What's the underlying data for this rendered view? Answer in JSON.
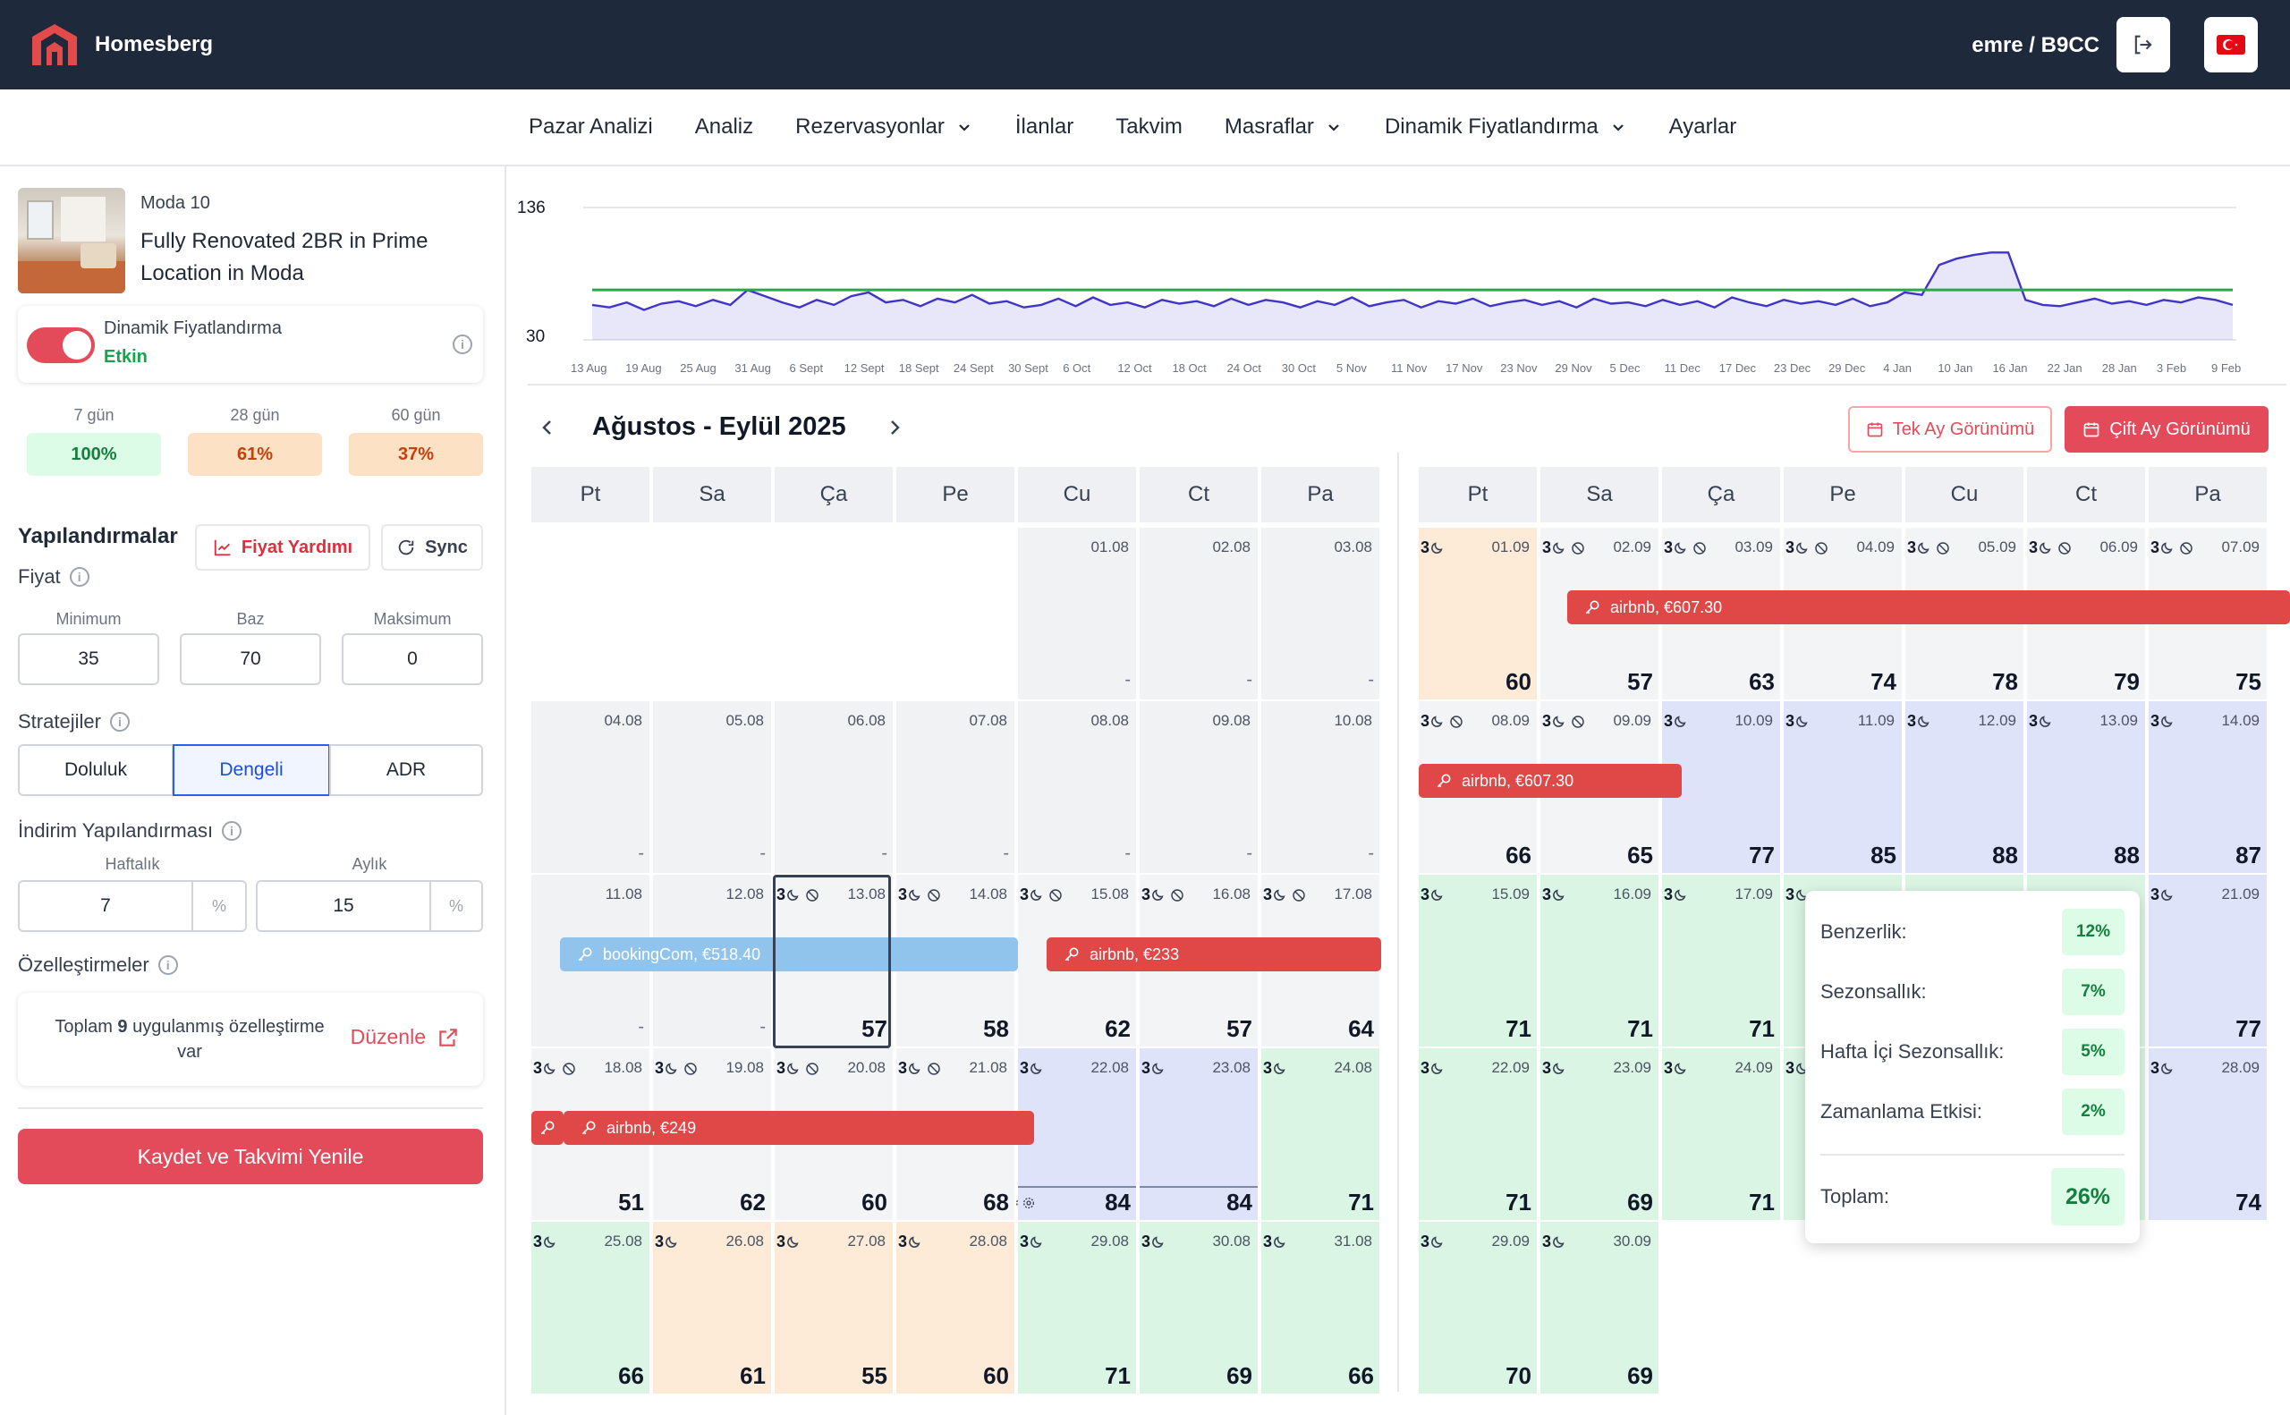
{
  "app": {
    "brand": "Homesberg",
    "user": "emre / B9CC"
  },
  "nav": [
    "Pazar Analizi",
    "Analiz",
    "Rezervasyonlar",
    "İlanlar",
    "Takvim",
    "Masraflar",
    "Dinamik Fiyatlandırma",
    "Ayarlar"
  ],
  "listing": {
    "group": "Moda 10",
    "title_line1": "Fully Renovated 2BR in Prime",
    "title_line2": "Location in Moda"
  },
  "dynamic": {
    "label": "Dinamik Fiyatlandırma",
    "status": "Etkin"
  },
  "occupancy": [
    {
      "label": "7 gün",
      "value": "100%"
    },
    {
      "label": "28 gün",
      "value": "61%"
    },
    {
      "label": "60 gün",
      "value": "37%"
    }
  ],
  "config": {
    "title": "Yapılandırmalar",
    "help_btn": "Fiyat Yardımı",
    "sync_btn": "Sync",
    "price_label": "Fiyat",
    "min_label": "Minimum",
    "base_label": "Baz",
    "max_label": "Maksimum",
    "min": "35",
    "base": "70",
    "max": "0",
    "strategies_label": "Stratejiler",
    "strategies": [
      "Doluluk",
      "Dengeli",
      "ADR"
    ],
    "discount_label": "İndirim Yapılandırması",
    "weekly_label": "Haftalık",
    "monthly_label": "Aylık",
    "weekly": "7",
    "monthly": "15",
    "pct": "%",
    "custom_label": "Özelleştirmeler",
    "custom_pre": "Toplam ",
    "custom_count": "9",
    "custom_post": " uygulanmış özelleştirme",
    "custom_post2": "var",
    "edit": "Düzenle",
    "save": "Kaydet ve Takvimi Yenile"
  },
  "chart_data": {
    "type": "line",
    "y_ticks": [
      "136",
      "30"
    ],
    "ylim": [
      30,
      136
    ],
    "x_labels": [
      "13 Aug",
      "19 Aug",
      "25 Aug",
      "31 Aug",
      "6 Sept",
      "12 Sept",
      "18 Sept",
      "24 Sept",
      "30 Sept",
      "6 Oct",
      "12 Oct",
      "18 Oct",
      "24 Oct",
      "30 Oct",
      "5 Nov",
      "11 Nov",
      "17 Nov",
      "23 Nov",
      "29 Nov",
      "5 Dec",
      "11 Dec",
      "17 Dec",
      "23 Dec",
      "29 Dec",
      "4 Jan",
      "10 Jan",
      "16 Jan",
      "22 Jan",
      "28 Jan",
      "3 Feb",
      "9 Feb"
    ],
    "price_series": [
      58,
      56,
      60,
      54,
      59,
      61,
      57,
      62,
      58,
      70,
      65,
      60,
      56,
      62,
      58,
      65,
      68,
      60,
      62,
      57,
      63,
      60,
      66,
      59,
      61,
      56,
      58,
      63,
      57,
      64,
      58,
      60,
      56,
      62,
      59,
      61,
      57,
      63,
      58,
      62,
      60,
      56,
      61,
      58,
      64,
      57,
      60,
      62,
      56,
      61,
      59,
      63,
      57,
      60,
      62,
      58,
      61,
      56,
      63,
      59,
      60,
      57,
      62,
      58,
      61,
      56,
      64,
      60,
      57,
      62,
      59,
      61,
      58,
      63,
      57,
      60,
      68,
      66,
      90,
      95,
      98,
      100,
      100,
      62,
      58,
      57,
      60,
      63,
      59,
      61,
      58,
      62,
      60,
      64,
      62,
      58
    ],
    "base_line": 70
  },
  "calendar": {
    "title": "Ağustos - Eylül 2025",
    "single_view": "Tek Ay Görünümü",
    "double_view": "Çift Ay Görünümü",
    "weekdays": [
      "Pt",
      "Sa",
      "Ça",
      "Pe",
      "Cu",
      "Ct",
      "Pa"
    ],
    "left": [
      [
        null,
        null,
        null,
        null,
        {
          "d": "01.08",
          "p": "-"
        },
        {
          "d": "02.08",
          "p": "-"
        },
        {
          "d": "03.08",
          "p": "-"
        }
      ],
      [
        {
          "d": "04.08",
          "p": "-"
        },
        {
          "d": "05.08",
          "p": "-"
        },
        {
          "d": "06.08",
          "p": "-"
        },
        {
          "d": "07.08",
          "p": "-"
        },
        {
          "d": "08.08",
          "p": "-"
        },
        {
          "d": "09.08",
          "p": "-"
        },
        {
          "d": "10.08",
          "p": "-"
        }
      ],
      [
        {
          "d": "11.08",
          "p": "-"
        },
        {
          "d": "12.08",
          "p": "-"
        },
        {
          "d": "13.08",
          "p": "57",
          "m": "3"
        },
        {
          "d": "14.08",
          "p": "58",
          "m": "3"
        },
        {
          "d": "15.08",
          "p": "62",
          "m": "3"
        },
        {
          "d": "16.08",
          "p": "57",
          "m": "3"
        },
        {
          "d": "17.08",
          "p": "64",
          "m": "3"
        }
      ],
      [
        {
          "d": "18.08",
          "p": "51",
          "m": "3"
        },
        {
          "d": "19.08",
          "p": "62",
          "m": "3"
        },
        {
          "d": "20.08",
          "p": "60",
          "m": "3"
        },
        {
          "d": "21.08",
          "p": "68",
          "m": "3"
        },
        {
          "d": "22.08",
          "p": "84",
          "m": "3"
        },
        {
          "d": "23.08",
          "p": "84",
          "m": "3"
        },
        {
          "d": "24.08",
          "p": "71",
          "m": "3"
        }
      ],
      [
        {
          "d": "25.08",
          "p": "66",
          "m": "3"
        },
        {
          "d": "26.08",
          "p": "61",
          "m": "3"
        },
        {
          "d": "27.08",
          "p": "55",
          "m": "3"
        },
        {
          "d": "28.08",
          "p": "60",
          "m": "3"
        },
        {
          "d": "29.08",
          "p": "71",
          "m": "3"
        },
        {
          "d": "30.08",
          "p": "69",
          "m": "3"
        },
        {
          "d": "31.08",
          "p": "66",
          "m": "3"
        }
      ]
    ],
    "right": [
      [
        {
          "d": "01.09",
          "p": "60",
          "m": "3"
        },
        {
          "d": "02.09",
          "p": "57",
          "m": "3"
        },
        {
          "d": "03.09",
          "p": "63",
          "m": "3"
        },
        {
          "d": "04.09",
          "p": "74",
          "m": "3"
        },
        {
          "d": "05.09",
          "p": "78",
          "m": "3"
        },
        {
          "d": "06.09",
          "p": "79",
          "m": "3"
        },
        {
          "d": "07.09",
          "p": "75",
          "m": "3"
        }
      ],
      [
        {
          "d": "08.09",
          "p": "66",
          "m": "3"
        },
        {
          "d": "09.09",
          "p": "65",
          "m": "3"
        },
        {
          "d": "10.09",
          "p": "77",
          "m": "3"
        },
        {
          "d": "11.09",
          "p": "85",
          "m": "3"
        },
        {
          "d": "12.09",
          "p": "88",
          "m": "3"
        },
        {
          "d": "13.09",
          "p": "88",
          "m": "3"
        },
        {
          "d": "14.09",
          "p": "87",
          "m": "3"
        }
      ],
      [
        {
          "d": "15.09",
          "p": "71",
          "m": "3"
        },
        {
          "d": "16.09",
          "p": "71",
          "m": "3"
        },
        {
          "d": "17.09",
          "p": "71",
          "m": "3"
        },
        {
          "d": "",
          "p": "",
          "m": "3"
        },
        {
          "d": "",
          "p": ""
        },
        {
          "d": "",
          "p": ""
        },
        {
          "d": "21.09",
          "p": "77",
          "m": "3"
        }
      ],
      [
        {
          "d": "22.09",
          "p": "71",
          "m": "3"
        },
        {
          "d": "23.09",
          "p": "69",
          "m": "3"
        },
        {
          "d": "24.09",
          "p": "71",
          "m": "3"
        },
        {
          "d": "",
          "p": "",
          "m": "3"
        },
        {
          "d": "",
          "p": ""
        },
        {
          "d": "",
          "p": ""
        },
        {
          "d": "28.09",
          "p": "74",
          "m": "3"
        }
      ],
      [
        {
          "d": "29.09",
          "p": "70",
          "m": "3"
        },
        {
          "d": "30.09",
          "p": "69",
          "m": "3"
        },
        null,
        null,
        null,
        null,
        null
      ]
    ],
    "bookings": [
      "airbnb, €607.30",
      "airbnb, €607.30",
      "bookingCom, €518.40",
      "airbnb, €233",
      "airbnb, €249"
    ]
  },
  "tooltip": {
    "rows": [
      {
        "label": "Benzerlik:",
        "value": "12%"
      },
      {
        "label": "Sezonsallık:",
        "value": "7%"
      },
      {
        "label": "Hafta İçi Sezonsallık:",
        "value": "5%"
      },
      {
        "label": "Zamanlama Etkisi:",
        "value": "2%"
      }
    ],
    "total_label": "Toplam:",
    "total": "26%"
  }
}
